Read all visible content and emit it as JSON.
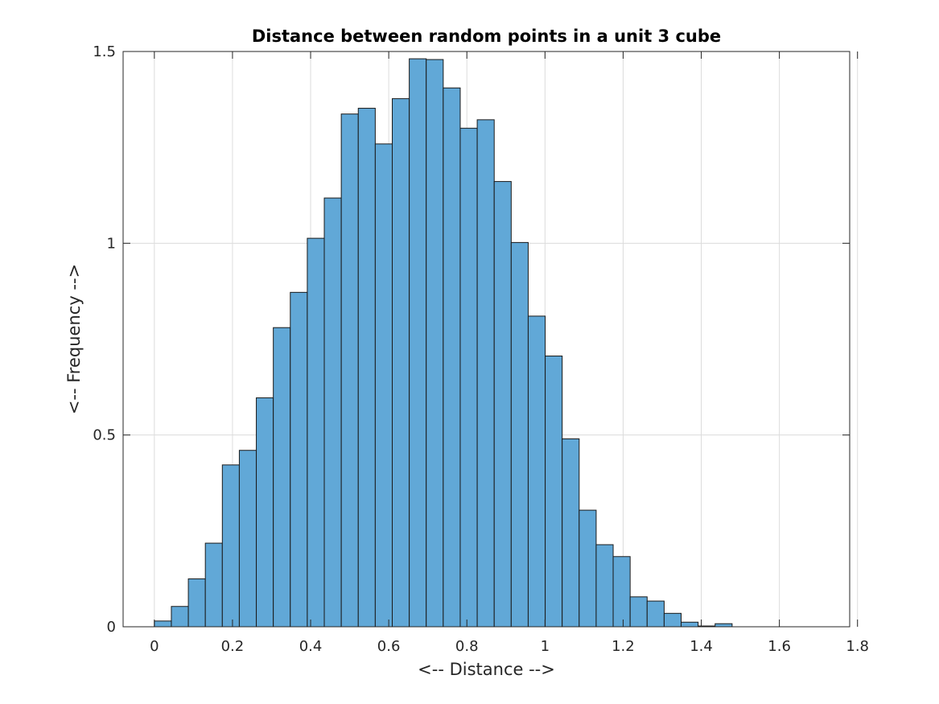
{
  "chart_data": {
    "type": "bar",
    "title": "Distance between random points in a unit 3 cube",
    "xlabel": "<-- Distance -->",
    "ylabel": "<-- Frequency -->",
    "xlim": [
      -0.08,
      1.78
    ],
    "ylim": [
      0,
      1.5
    ],
    "xticks": [
      0,
      0.2,
      0.4,
      0.6,
      0.8,
      1,
      1.2,
      1.4,
      1.6,
      1.8
    ],
    "xtick_labels": [
      "0",
      "0.2",
      "0.4",
      "0.6",
      "0.8",
      "1",
      "1.2",
      "1.4",
      "1.6",
      "1.8"
    ],
    "yticks": [
      0,
      0.5,
      1,
      1.5
    ],
    "ytick_labels": [
      "0",
      "0.5",
      "1",
      "1.5"
    ],
    "grid": true,
    "bin_width": 0.0435,
    "bin_edges_start": 0,
    "values": [
      0.015,
      0.053,
      0.125,
      0.218,
      0.422,
      0.46,
      0.597,
      0.78,
      0.872,
      1.013,
      1.118,
      1.337,
      1.352,
      1.259,
      1.377,
      1.481,
      1.479,
      1.405,
      1.3,
      1.322,
      1.161,
      1.002,
      0.81,
      0.706,
      0.49,
      0.304,
      0.214,
      0.183,
      0.078,
      0.067,
      0.035,
      0.012,
      0.002,
      0.008
    ],
    "colors": {
      "bar_fill": "#61a8d7",
      "bar_edge": "#1a1a1a",
      "grid": "#dcdcdc",
      "axis": "#262626"
    }
  }
}
